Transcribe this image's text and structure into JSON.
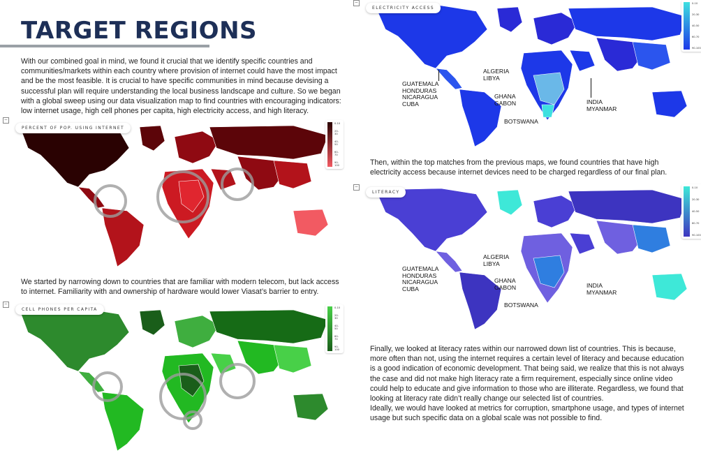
{
  "page_title": "TARGET REGIONS",
  "intro": "With our combined goal in mind, we found it crucial that we identify specific countries and communities/markets within each country where provision of internet could have the most impact and be the most feasible. It is crucial to have specific communities in mind because devising a successful plan will require understanding the local business landscape and culture. So we began with a global sweep using our data visualization map to find countries with encouraging indicators: low internet usage, high cell phones per capita, high electricity access, and high literacy.",
  "paragraph_internet": "We started by narrowing down to countries that are familiar with modern telecom, but lack access to internet. Familiarity with and ownership of hardware would lower Viasat’s barrier to entry.",
  "paragraph_electricity": "Then, within the top matches from the previous maps, we found countries that have high electricity access because internet devices need to be charged regardless of our final plan.",
  "paragraph_literacy_1": "Finally, we looked at literacy rates within our narrowed down list of countries. This is because, more often than not, using the internet requires a certain level of literacy and because education is a good indication of economic development. That being said, we realize that this is not always the case and did not make high literacy rate a firm requirement, especially since online video could help to educate and give information to those who are illiterate. Regardless, we found that looking at literacy rate didn’t really change our selected list of countries.",
  "paragraph_literacy_2": "Ideally, we would have looked at metrics for corruption, smartphone usage, and types of internet usage but such specific data on a global scale was not possible to find.",
  "maps": {
    "internet": {
      "title": "PERCENT OF POP. USING INTERNET",
      "colors": [
        "#2a0202",
        "#5c0509",
        "#8f0a12",
        "#b3131b",
        "#cc1a22",
        "#e0262f",
        "#f25a62"
      ]
    },
    "cellphones": {
      "title": "CELL PHONES PER CAPITA",
      "colors": [
        "#2d8a2d",
        "#1a5e1a",
        "#3fae3f",
        "#22b922",
        "#48d048",
        "#166b16"
      ]
    },
    "electricity": {
      "title": "ELECTRICITY ACCESS",
      "colors": [
        "#1d38e8",
        "#2a2ad6",
        "#6ab8e8",
        "#3ee0e0",
        "#2b55ee"
      ]
    },
    "literacy": {
      "title": "LITERACY",
      "colors": [
        "#4a3fd4",
        "#3d34c0",
        "#6f60e0",
        "#3ee8d8",
        "#2f7ee0"
      ]
    }
  },
  "legend_ranges": [
    "0-10",
    "10-20",
    "20-30",
    "30-40",
    "40-50",
    "50-60",
    "60-70",
    "70-80",
    "80-90",
    "90-100"
  ],
  "labels": {
    "group_latam": [
      "GUATEMALA",
      "HONDURAS",
      "NICARAGUA",
      "CUBA"
    ],
    "group_north_africa": [
      "ALGERIA",
      "LIBYA"
    ],
    "group_west_africa": [
      "GHANA",
      "GABON"
    ],
    "group_south_asia": [
      "INDIA",
      "MYANMAR"
    ],
    "botswana": "BOTSWANA"
  },
  "collapse_glyph": "–"
}
